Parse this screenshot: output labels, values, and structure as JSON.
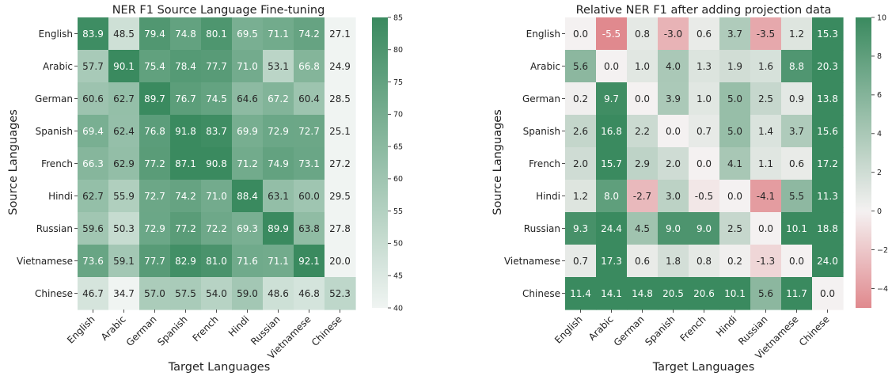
{
  "chart_data": [
    {
      "type": "heatmap",
      "title": "NER F1 Source Language Fine-tuning",
      "xlabel": "Target Languages",
      "ylabel": "Source Languages",
      "x_categories": [
        "English",
        "Arabic",
        "German",
        "Spanish",
        "French",
        "Hindi",
        "Russian",
        "Vietnamese",
        "Chinese"
      ],
      "y_categories": [
        "English",
        "Arabic",
        "German",
        "Spanish",
        "French",
        "Hindi",
        "Russian",
        "Vietnamese",
        "Chinese"
      ],
      "values": [
        [
          "83.9",
          "48.5",
          "79.4",
          "74.8",
          "80.1",
          "69.5",
          "71.1",
          "74.2",
          "27.1"
        ],
        [
          "57.7",
          "90.1",
          "75.4",
          "78.4",
          "77.7",
          "71.0",
          "53.1",
          "66.8",
          "24.9"
        ],
        [
          "60.6",
          "62.7",
          "89.7",
          "76.7",
          "74.5",
          "64.6",
          "67.2",
          "60.4",
          "28.5"
        ],
        [
          "69.4",
          "62.4",
          "76.8",
          "91.8",
          "83.7",
          "69.9",
          "72.9",
          "72.7",
          "25.1"
        ],
        [
          "66.3",
          "62.9",
          "77.2",
          "87.1",
          "90.8",
          "71.2",
          "74.9",
          "73.1",
          "27.2"
        ],
        [
          "62.7",
          "55.9",
          "72.7",
          "74.2",
          "71.0",
          "88.4",
          "63.1",
          "60.0",
          "29.5"
        ],
        [
          "59.6",
          "50.3",
          "72.9",
          "77.2",
          "72.2",
          "69.3",
          "89.9",
          "63.8",
          "27.8"
        ],
        [
          "73.6",
          "59.1",
          "77.7",
          "82.9",
          "81.0",
          "71.6",
          "71.1",
          "92.1",
          "20.0"
        ],
        [
          "46.7",
          "34.7",
          "57.0",
          "57.5",
          "54.0",
          "59.0",
          "48.6",
          "46.8",
          "52.3"
        ]
      ],
      "vmin": 40,
      "vmax": 85,
      "colorbar_ticks": [
        "40",
        "45",
        "50",
        "55",
        "60",
        "65",
        "70",
        "75",
        "80",
        "85"
      ],
      "colormap": "sequential",
      "colors": {
        "low": "#f0f4f2",
        "high": "#3a8a5f"
      }
    },
    {
      "type": "heatmap",
      "title": "Relative NER F1 after adding projection data",
      "xlabel": "Target Languages",
      "ylabel": "Source Languages",
      "x_categories": [
        "English",
        "Arabic",
        "German",
        "Spanish",
        "French",
        "Hindi",
        "Russian",
        "Vietnamese",
        "Chinese"
      ],
      "y_categories": [
        "English",
        "Arabic",
        "German",
        "Spanish",
        "French",
        "Hindi",
        "Russian",
        "Vietnamese",
        "Chinese"
      ],
      "values": [
        [
          "0.0",
          "-5.5",
          "0.8",
          "-3.0",
          "0.6",
          "3.7",
          "-3.5",
          "1.2",
          "15.3"
        ],
        [
          "5.6",
          "0.0",
          "1.0",
          "4.0",
          "1.3",
          "1.9",
          "1.6",
          "8.8",
          "20.3"
        ],
        [
          "0.2",
          "9.7",
          "0.0",
          "3.9",
          "1.0",
          "5.0",
          "2.5",
          "0.9",
          "13.8"
        ],
        [
          "2.6",
          "16.8",
          "2.2",
          "0.0",
          "0.7",
          "5.0",
          "1.4",
          "3.7",
          "15.6"
        ],
        [
          "2.0",
          "15.7",
          "2.9",
          "2.0",
          "0.0",
          "4.1",
          "1.1",
          "0.6",
          "17.2"
        ],
        [
          "1.2",
          "8.0",
          "-2.7",
          "3.0",
          "-0.5",
          "0.0",
          "-4.1",
          "5.5",
          "11.3"
        ],
        [
          "9.3",
          "24.4",
          "4.5",
          "9.0",
          "9.0",
          "2.5",
          "0.0",
          "10.1",
          "18.8"
        ],
        [
          "0.7",
          "17.3",
          "0.6",
          "1.8",
          "0.8",
          "0.2",
          "-1.3",
          "0.0",
          "24.0"
        ],
        [
          "11.4",
          "14.1",
          "14.8",
          "20.5",
          "20.6",
          "10.1",
          "5.6",
          "11.7",
          "0.0"
        ]
      ],
      "vmin": -5,
      "vmax": 10,
      "colorbar_ticks": [
        "−4",
        "−2",
        "0",
        "2",
        "4",
        "6",
        "8",
        "10"
      ],
      "colormap": "diverging",
      "colors": {
        "low": "#e0898e",
        "mid": "#f4f1f1",
        "high": "#3a8a5f"
      }
    }
  ]
}
